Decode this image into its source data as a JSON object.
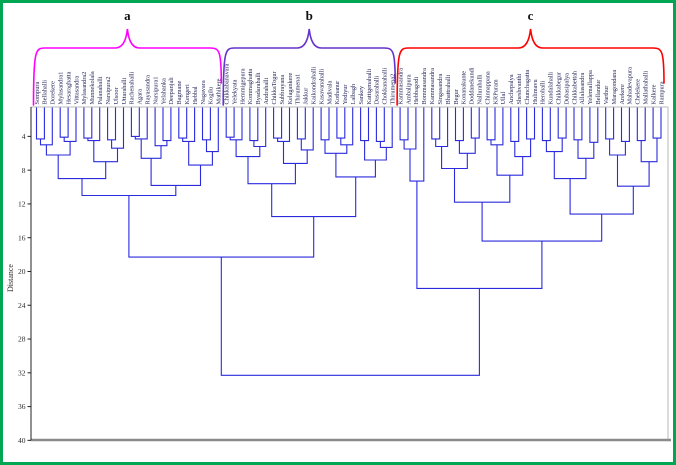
{
  "figure": {
    "border_color": "#00a651",
    "background": "#ffffff",
    "dendrogram_line_color": "#2b2bdd",
    "leaf_label_color": "#1c1c52"
  },
  "chart_data": {
    "type": "dendrogram",
    "title": "",
    "ylabel": "Distance",
    "ylim": [
      0,
      40
    ],
    "y_axis_increases_downward": true,
    "yticks": [
      4,
      8,
      12,
      16,
      20,
      24,
      28,
      32,
      36,
      40
    ],
    "leaves": [
      "Sompura",
      "Bellahalli",
      "Dorekere",
      "Mylasandra1",
      "Hesaraghatta",
      "Vittasandra",
      "Mylasandra2",
      "Munnekolala",
      "Palanahalli",
      "Narsipura2",
      "Ulsoor",
      "Uttarahalli",
      "Rachenahalli",
      "Agara",
      "Rayasandra",
      "Narsipura1",
      "Yelahanka",
      "Deepanjali",
      "Bagmane",
      "Kengeri",
      "Hebbal",
      "Nagavara",
      "Kogilu",
      "Mathikere",
      "Chikkabanavara",
      "Yelekyata",
      "Hemmigepura",
      "Kommaghatta",
      "Byadarahalli",
      "Andrahalli",
      "ChikkaTogur",
      "Subbrayana",
      "Kelagankere",
      "Thirumena1",
      "Jakkur",
      "Kaikondrahalli",
      "Kasavanahalli",
      "Madivala",
      "Kothanur",
      "Yediyur",
      "Lalbagh",
      "Sankey",
      "Kattigenahalli",
      "Dasarahalli",
      "Chokkanahalli",
      "Thirumena2",
      "Kammasandra",
      "Ambalipura",
      "Hebbagodi",
      "Bommasandra",
      "Kammasandra",
      "Singasandra",
      "Bhattrahalli",
      "Begur",
      "Konanakunte",
      "Doddanekundi",
      "Nallurahalli",
      "Chinnappana",
      "KRPuram",
      "Ullal",
      "Anchepalya",
      "Sheshvanthi",
      "Chunchagatta",
      "Hulimavu",
      "Herohalli",
      "Kundalahalli",
      "Chikkabegur",
      "Dubasipalya",
      "Chikkabettah",
      "Allalasandra",
      "Yelemallappa",
      "Bellandur",
      "Varthur",
      "Maragondana",
      "Arekere",
      "Mahadevapura",
      "Chelekere",
      "Mallathahalli",
      "Kalkere",
      "Rampura"
    ],
    "clusters": [
      {
        "label": "a",
        "color": "#ff00ff",
        "leaf_range": [
          0,
          23
        ]
      },
      {
        "label": "b",
        "color": "#6633cc",
        "leaf_range": [
          24,
          45
        ]
      },
      {
        "label": "c",
        "color": "#ff0000",
        "leaf_range": [
          46,
          79
        ]
      }
    ],
    "linkage_tree": [
      32.3,
      [
        18.3,
        [
          11.0,
          [
            9.0,
            [
              6.2,
              [
                5.0,
                [
                  4.3,
                  0,
                  1
                ],
                2
              ],
              [
                4.6,
                [
                  4.1,
                  3,
                  4
                ],
                5
              ]
            ],
            [
              7.0,
              [
                4.5,
                [
                  4.2,
                  6,
                  7
                ],
                8
              ],
              [
                5.4,
                [
                  4.4,
                  9,
                  10
                ],
                11
              ]
            ]
          ],
          [
            9.8,
            [
              6.6,
              [
                4.3,
                [
                  4.0,
                  12,
                  13
                ],
                14
              ],
              [
                5.1,
                15,
                [
                  4.5,
                  16,
                  17
                ]
              ]
            ],
            [
              7.4,
              [
                4.6,
                [
                  4.2,
                  18,
                  19
                ],
                20
              ],
              [
                5.8,
                [
                  4.4,
                  21,
                  22
                ],
                23
              ]
            ]
          ]
        ],
        [
          13.5,
          [
            9.6,
            [
              6.4,
              [
                4.4,
                [
                  4.1,
                  24,
                  25
                ],
                26
              ],
              [
                5.2,
                [
                  4.5,
                  27,
                  28
                ],
                29
              ]
            ],
            [
              7.2,
              [
                4.6,
                [
                  4.2,
                  30,
                  31
                ],
                32
              ],
              [
                5.6,
                [
                  4.3,
                  33,
                  34
                ],
                35
              ]
            ]
          ],
          [
            8.8,
            [
              6.0,
              [
                4.4,
                36,
                37
              ],
              [
                5.0,
                [
                  4.2,
                  38,
                  39
                ],
                40
              ]
            ],
            [
              6.8,
              [
                4.5,
                41,
                42
              ],
              [
                5.3,
                [
                  4.6,
                  43,
                  44
                ],
                45
              ]
            ]
          ]
        ]
      ],
      [
        22.0,
        [
          9.3,
          [
            5.5,
            [
              4.4,
              46,
              47
            ],
            48
          ],
          49
        ],
        [
          16.4,
          [
            11.8,
            [
              7.8,
              [
                5.2,
                [
                  4.3,
                  50,
                  51
                ],
                52
              ],
              [
                6.0,
                [
                  4.5,
                  53,
                  54
                ],
                [
                  4.2,
                  55,
                  56
                ]
              ]
            ],
            [
              8.6,
              [
                5.0,
                [
                  4.4,
                  57,
                  58
                ],
                59
              ],
              [
                6.4,
                [
                  4.6,
                  60,
                  61
                ],
                [
                  4.3,
                  62,
                  63
                ]
              ]
            ]
          ],
          [
            13.2,
            [
              9.0,
              [
                5.8,
                [
                  4.5,
                  64,
                  65
                ],
                [
                  4.2,
                  66,
                  67
                ]
              ],
              [
                6.6,
                [
                  4.4,
                  68,
                  69
                ],
                [
                  4.7,
                  70,
                  71
                ]
              ]
            ],
            [
              9.9,
              [
                6.2,
                [
                  4.3,
                  72,
                  73
                ],
                [
                  4.6,
                  74,
                  75
                ]
              ],
              [
                7.0,
                [
                  4.5,
                  76,
                  77
                ],
                [
                  4.2,
                  78,
                  79
                ]
              ]
            ]
          ]
        ]
      ]
    ]
  }
}
